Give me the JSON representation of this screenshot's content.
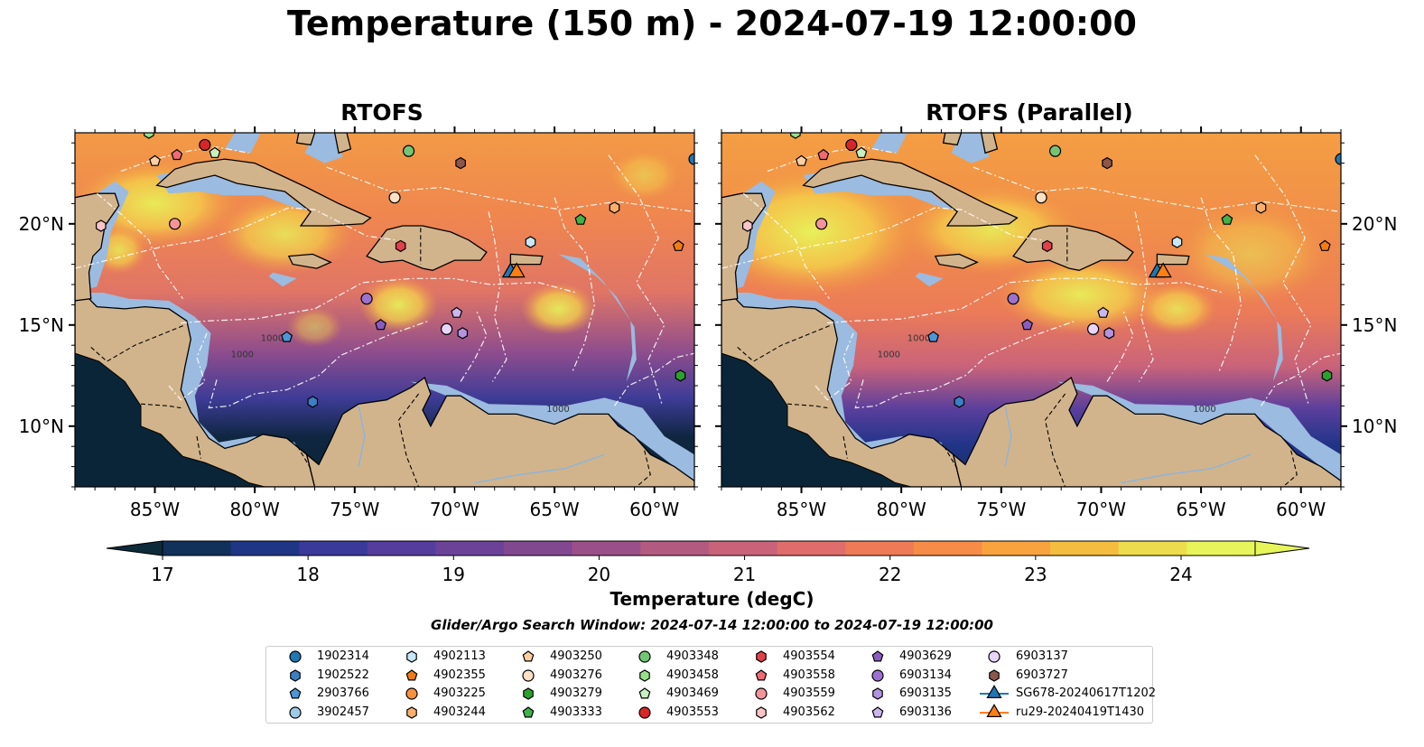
{
  "title": "Temperature (150 m) - 2024-07-19 12:00:00",
  "panels": [
    {
      "title": "RTOFS"
    },
    {
      "title": "RTOFS (Parallel)"
    }
  ],
  "map": {
    "lon_ticks": [
      "85°W",
      "80°W",
      "75°W",
      "70°W",
      "65°W",
      "60°W"
    ],
    "lat_ticks": [
      "20°N",
      "15°N",
      "10°N"
    ],
    "lon_range": [
      -89,
      -58
    ],
    "lat_range": [
      7,
      24.5
    ],
    "contour_labels": [
      "1000",
      "1000",
      "1000"
    ],
    "colors": {
      "land": "#d2b48c",
      "shelf": "#9bbbe0",
      "deep_cold": "#0b2538",
      "warm": "#e7f55a"
    }
  },
  "colorbar": {
    "label": "Temperature (degC)",
    "ticks": [
      "17",
      "18",
      "19",
      "20",
      "21",
      "22",
      "23",
      "24"
    ],
    "range": [
      16.75,
      24.5
    ],
    "colors": [
      "#0d2a3a",
      "#11305a",
      "#1f3585",
      "#3a3a9a",
      "#553d9e",
      "#6c4299",
      "#82488f",
      "#9a4f88",
      "#b35a80",
      "#c9637a",
      "#de6d6b",
      "#ee7a57",
      "#f68c48",
      "#f9a33e",
      "#f5bd3f",
      "#eddd4c",
      "#e7f55a"
    ]
  },
  "search_window": "Glider/Argo Search Window: 2024-07-14 12:00:00 to 2024-07-19 12:00:00",
  "legend": [
    {
      "label": "1902314",
      "marker": "circle",
      "color": "#1f77b4"
    },
    {
      "label": "1902522",
      "marker": "hexagon",
      "color": "#3b7fc4"
    },
    {
      "label": "2903766",
      "marker": "pentagon",
      "color": "#4a96d8"
    },
    {
      "label": "3902457",
      "marker": "circle",
      "color": "#9ecae9"
    },
    {
      "label": "4902113",
      "marker": "hexagon",
      "color": "#c6e8f7"
    },
    {
      "label": "4902355",
      "marker": "pentagon",
      "color": "#f07c12"
    },
    {
      "label": "4903225",
      "marker": "circle",
      "color": "#f7923a"
    },
    {
      "label": "4903244",
      "marker": "hexagon",
      "color": "#fdb06b"
    },
    {
      "label": "4903250",
      "marker": "pentagon",
      "color": "#fdd0a2"
    },
    {
      "label": "4903276",
      "marker": "circle",
      "color": "#fde0c5"
    },
    {
      "label": "4903279",
      "marker": "hexagon",
      "color": "#2ca02c"
    },
    {
      "label": "4903333",
      "marker": "pentagon",
      "color": "#3fb24a"
    },
    {
      "label": "4903348",
      "marker": "circle",
      "color": "#74c476"
    },
    {
      "label": "4903458",
      "marker": "hexagon",
      "color": "#98df8a"
    },
    {
      "label": "4903469",
      "marker": "pentagon",
      "color": "#c7f0c0"
    },
    {
      "label": "4903553",
      "marker": "circle",
      "color": "#d62728"
    },
    {
      "label": "4903554",
      "marker": "hexagon",
      "color": "#e0414a"
    },
    {
      "label": "4903558",
      "marker": "pentagon",
      "color": "#ee6b73"
    },
    {
      "label": "4903559",
      "marker": "circle",
      "color": "#f4949a"
    },
    {
      "label": "4903562",
      "marker": "hexagon",
      "color": "#fbc4c6"
    },
    {
      "label": "4903629",
      "marker": "pentagon",
      "color": "#8a5cc2"
    },
    {
      "label": "6903134",
      "marker": "circle",
      "color": "#9b72cf"
    },
    {
      "label": "6903135",
      "marker": "hexagon",
      "color": "#b294df"
    },
    {
      "label": "6903136",
      "marker": "pentagon",
      "color": "#cdb6ee"
    },
    {
      "label": "6903137",
      "marker": "circle",
      "color": "#e8d5fb"
    },
    {
      "label": "6903727",
      "marker": "hexagon",
      "color": "#8c564b"
    },
    {
      "label": "SG678-20240617T1202",
      "marker": "triangle",
      "color": "#1f77b4"
    },
    {
      "label": "ru29-20240419T1430",
      "marker": "triangle",
      "color": "#ff7f0e"
    }
  ],
  "observations": [
    {
      "id": "4903348",
      "lon": -72.3,
      "lat": 23.6
    },
    {
      "id": "4903553",
      "lon": -82.5,
      "lat": 23.9
    },
    {
      "id": "4903558",
      "lon": -83.9,
      "lat": 23.4
    },
    {
      "id": "4903250",
      "lon": -85.0,
      "lat": 23.1
    },
    {
      "id": "4903469",
      "lon": -82.0,
      "lat": 23.5
    },
    {
      "id": "4903458",
      "lon": -85.3,
      "lat": 24.5
    },
    {
      "id": "6903727",
      "lon": -69.7,
      "lat": 23.0
    },
    {
      "id": "4903276",
      "lon": -73.0,
      "lat": 21.3
    },
    {
      "id": "4903244",
      "lon": -62.0,
      "lat": 20.8
    },
    {
      "id": "4903333",
      "lon": -63.7,
      "lat": 20.2
    },
    {
      "id": "4903562",
      "lon": -87.7,
      "lat": 19.9
    },
    {
      "id": "4903559",
      "lon": -84.0,
      "lat": 20.0
    },
    {
      "id": "4903554",
      "lon": -72.7,
      "lat": 18.9
    },
    {
      "id": "4902113",
      "lon": -66.2,
      "lat": 19.1
    },
    {
      "id": "4902355",
      "lon": -58.8,
      "lat": 18.9
    },
    {
      "id": "6903134",
      "lon": -74.4,
      "lat": 16.3
    },
    {
      "id": "4903629",
      "lon": -73.7,
      "lat": 15.0
    },
    {
      "id": "6903136",
      "lon": -69.9,
      "lat": 15.6
    },
    {
      "id": "6903137",
      "lon": -70.4,
      "lat": 14.8
    },
    {
      "id": "6903135",
      "lon": -69.6,
      "lat": 14.6
    },
    {
      "id": "2903766",
      "lon": -78.4,
      "lat": 14.4
    },
    {
      "id": "1902522",
      "lon": -77.1,
      "lat": 11.2
    },
    {
      "id": "4903279",
      "lon": -58.7,
      "lat": 12.5
    },
    {
      "id": "1902314",
      "lon": -58.0,
      "lat": 23.2
    }
  ],
  "gliders": [
    {
      "id": "SG678-20240617T1202",
      "lon": -67.2,
      "lat": 17.6
    },
    {
      "id": "ru29-20240419T1430",
      "lon": -66.9,
      "lat": 17.6
    }
  ]
}
